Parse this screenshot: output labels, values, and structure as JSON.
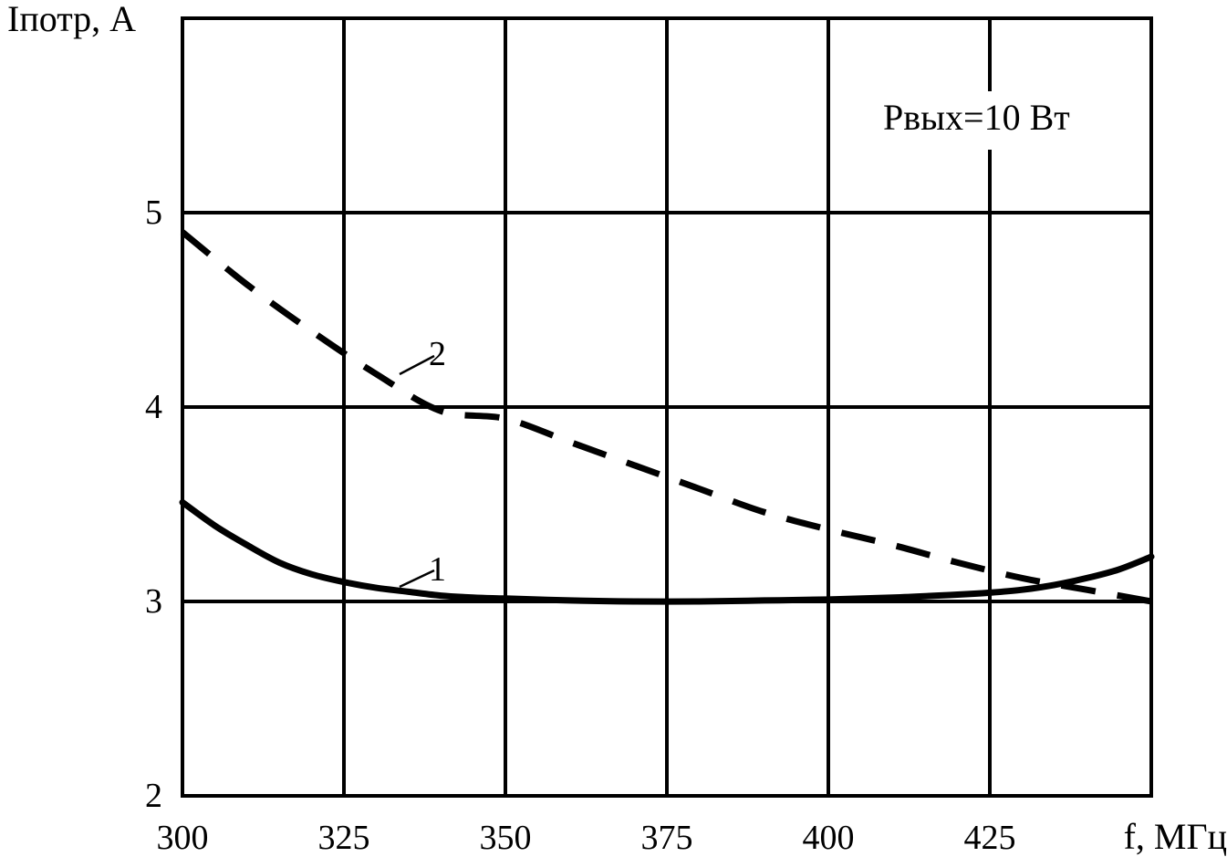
{
  "chart_data": {
    "type": "line",
    "ylabel": "Iпотр, А",
    "xlabel": "f, МГц",
    "xlim": [
      300,
      450
    ],
    "ylim": [
      2,
      6
    ],
    "x_ticks": [
      300,
      325,
      350,
      375,
      400,
      425
    ],
    "y_ticks": [
      2,
      3,
      4,
      5
    ],
    "grid": true,
    "annotation": "Pвых=10 Вт",
    "series": [
      {
        "label": "1",
        "style": "solid",
        "x": [
          300,
          305,
          310,
          315,
          320,
          325,
          330,
          335,
          340,
          345,
          350,
          360,
          370,
          380,
          390,
          400,
          410,
          420,
          425,
          430,
          435,
          440,
          445,
          450
        ],
        "y": [
          3.51,
          3.39,
          3.29,
          3.2,
          3.14,
          3.1,
          3.07,
          3.05,
          3.03,
          3.02,
          3.015,
          3.005,
          3.0,
          3.0,
          3.005,
          3.01,
          3.02,
          3.035,
          3.045,
          3.06,
          3.085,
          3.12,
          3.165,
          3.23
        ]
      },
      {
        "label": "2",
        "style": "dashed",
        "x": [
          300,
          310,
          320,
          330,
          340,
          350,
          360,
          370,
          380,
          390,
          400,
          410,
          420,
          430,
          440,
          450
        ],
        "y": [
          4.9,
          4.63,
          4.39,
          4.17,
          3.98,
          3.94,
          3.82,
          3.7,
          3.58,
          3.46,
          3.37,
          3.29,
          3.2,
          3.12,
          3.06,
          3.0
        ]
      }
    ]
  }
}
